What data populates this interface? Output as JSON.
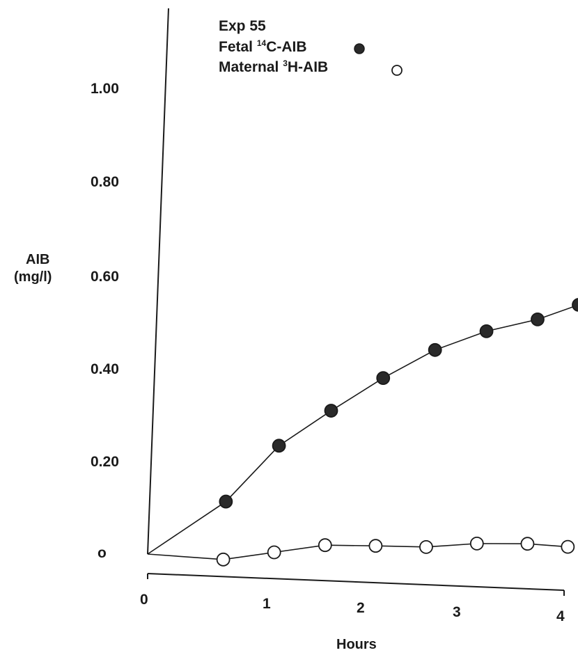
{
  "chart_data": {
    "type": "line",
    "title": "",
    "xlabel": "Hours",
    "ylabel": "AIB",
    "ylabel_unit": "(mg/l)",
    "xlim": [
      0,
      4
    ],
    "ylim": [
      0,
      1.0
    ],
    "x_ticks": [
      "0",
      "1",
      "2",
      "3",
      "4"
    ],
    "y_ticks": [
      "o",
      "0.20",
      "0.40",
      "0.60",
      "0.80",
      "1.00"
    ],
    "grid": false,
    "legend": {
      "title": "Exp 55",
      "placement": "top-left",
      "entries": [
        {
          "pre": "Fetal ",
          "sup": "14",
          "post": "C-AIB",
          "marker": "filled-circle"
        },
        {
          "pre": "Maternal ",
          "sup": "3",
          "post": "H-AIB",
          "marker": "open-circle"
        }
      ]
    },
    "series": [
      {
        "name": "Fetal 14C-AIB",
        "marker": "filled",
        "x": [
          0,
          0.75,
          1.25,
          1.75,
          2.25,
          2.75,
          3.25,
          3.75,
          4.15
        ],
        "y": [
          0,
          0.12,
          0.245,
          0.325,
          0.4,
          0.465,
          0.51,
          0.54,
          0.575
        ]
      },
      {
        "name": "Maternal 3H-AIB",
        "marker": "open",
        "x": [
          0,
          0.75,
          1.25,
          1.75,
          2.25,
          2.75,
          3.25,
          3.75,
          4.15
        ],
        "y": [
          0,
          -0.005,
          0.015,
          0.035,
          0.038,
          0.04,
          0.052,
          0.056,
          0.053
        ]
      }
    ]
  }
}
